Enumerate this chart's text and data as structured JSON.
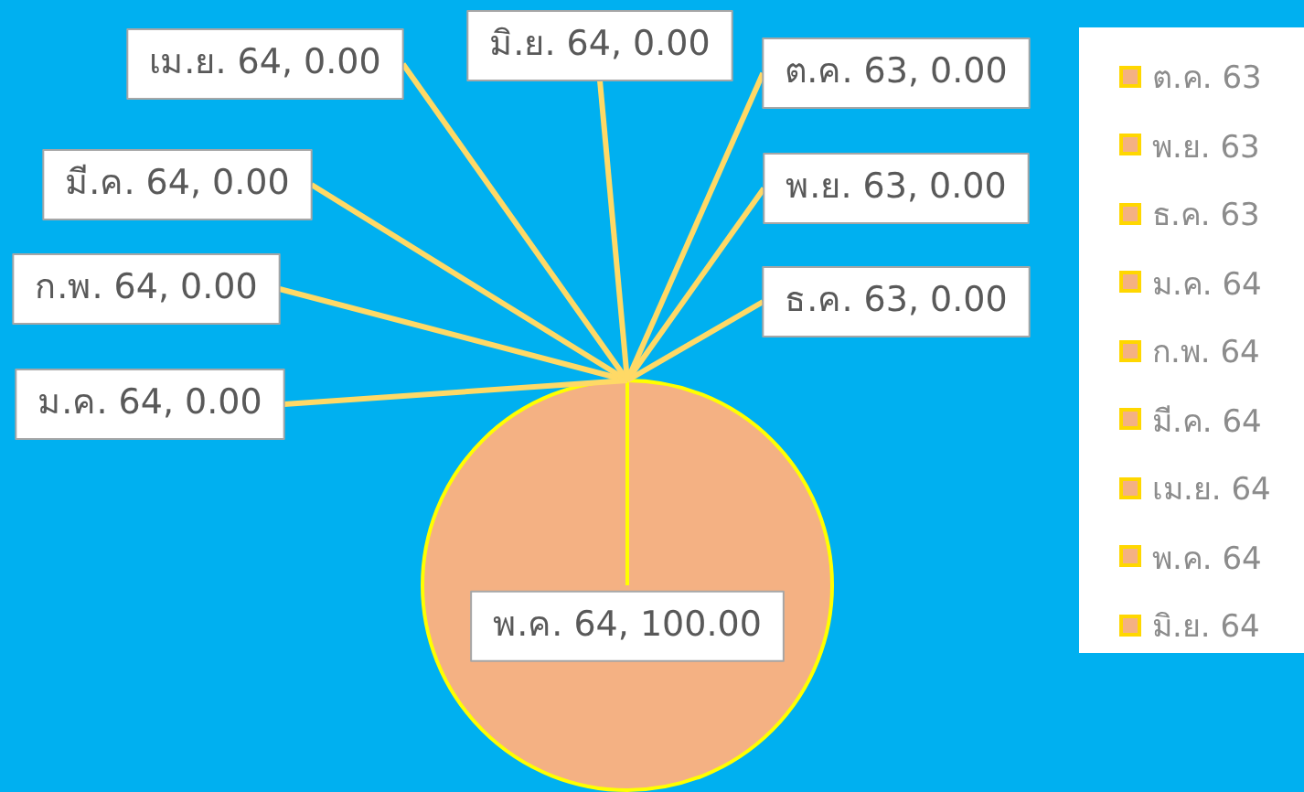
{
  "chart_data": {
    "type": "pie",
    "categories": [
      "ต.ค. 63",
      "พ.ย. 63",
      "ธ.ค. 63",
      "ม.ค. 64",
      "ก.พ. 64",
      "มี.ค. 64",
      "เม.ย. 64",
      "พ.ค. 64",
      "มิ.ย. 64"
    ],
    "values": [
      0,
      0,
      0,
      0,
      0,
      0,
      0,
      100,
      0
    ],
    "colors": [
      "#f4b183",
      "#f4b183",
      "#f4b183",
      "#f4b183",
      "#f4b183",
      "#f4b183",
      "#f4b183",
      "#f4b183",
      "#f4b183"
    ],
    "value_labels": [
      "ต.ค. 63, 0.00",
      "พ.ย. 63, 0.00",
      "ธ.ค. 63, 0.00",
      "ม.ค. 64, 0.00",
      "ก.พ. 64, 0.00",
      "มี.ค. 64, 0.00",
      "เม.ย. 64, 0.00",
      "พ.ค. 64, 100.00",
      "มิ.ย. 64, 0.00"
    ],
    "legend": "right"
  }
}
